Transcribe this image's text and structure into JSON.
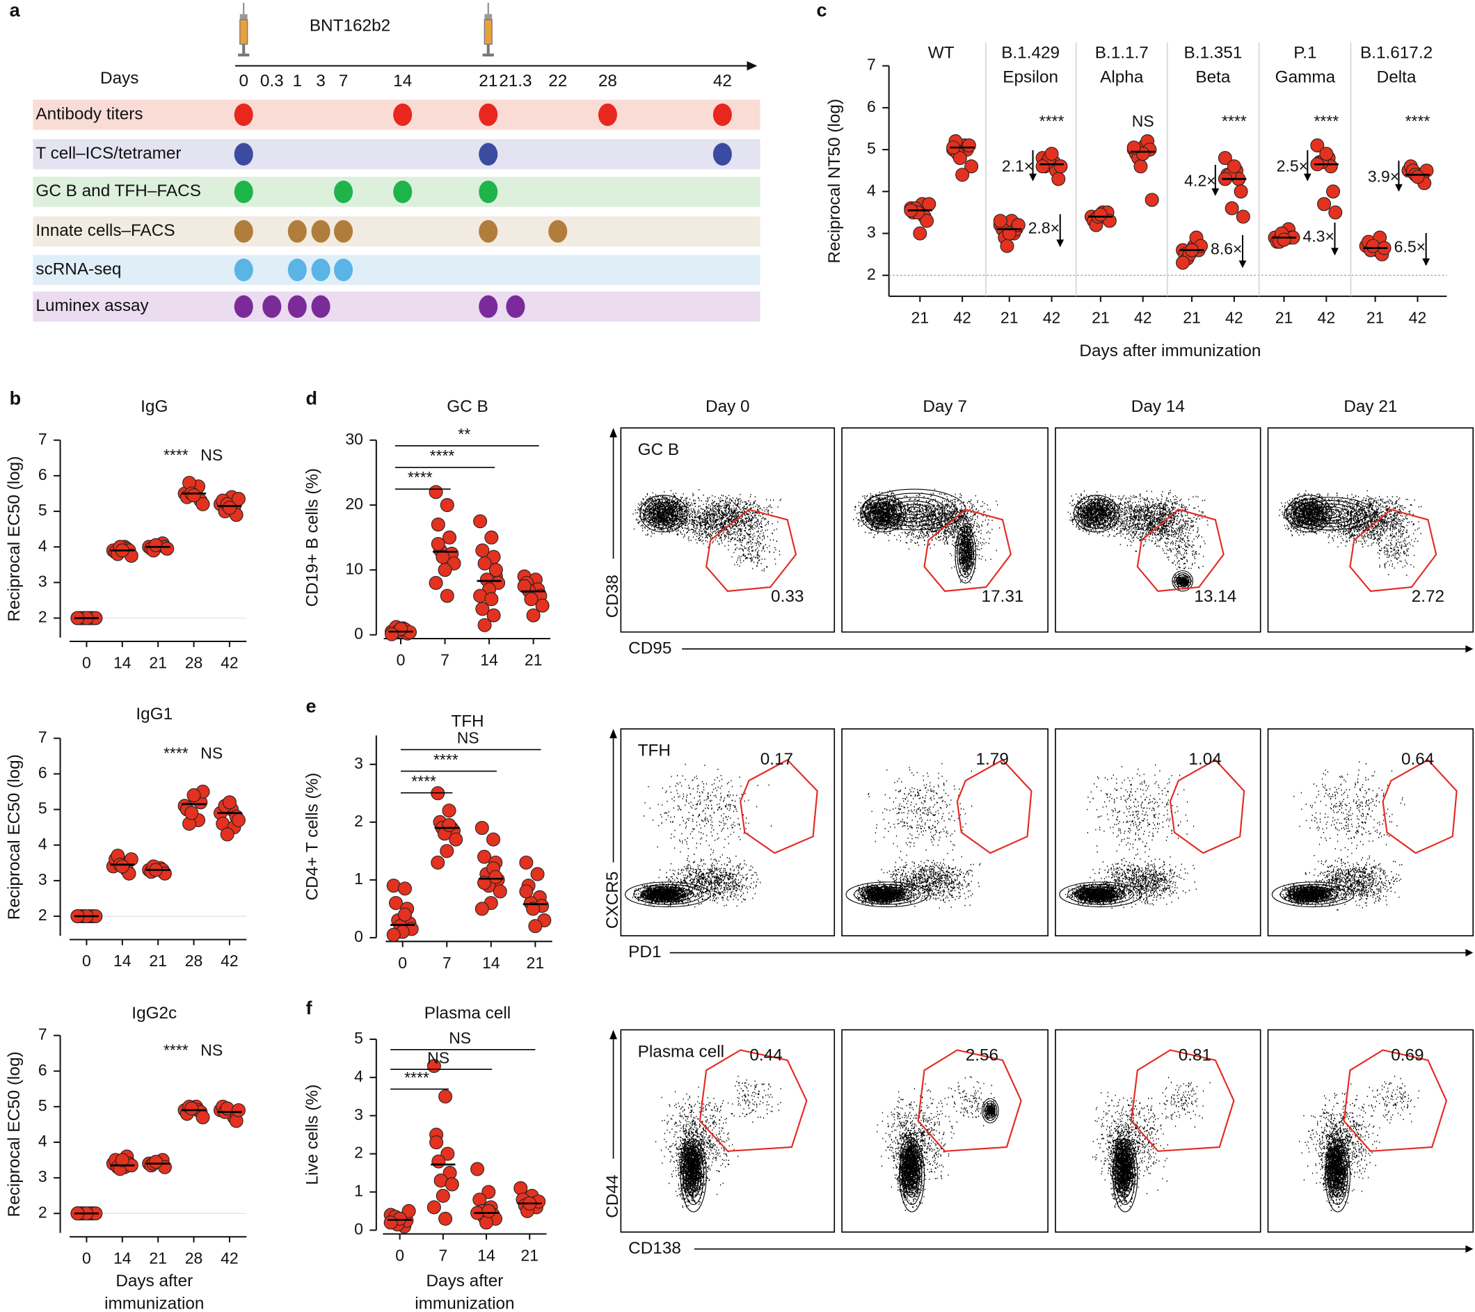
{
  "panels": [
    "a",
    "b",
    "c",
    "d",
    "e",
    "f"
  ],
  "timeline": {
    "vaccine": "BNT162b2",
    "days_label": "Days",
    "days": [
      0,
      0.3,
      1,
      3,
      7,
      14,
      21,
      21.3,
      22,
      28,
      42
    ],
    "rows": [
      {
        "label": "Antibody titers",
        "color": "#e8281e",
        "background": "#fadcd7",
        "days": [
          0,
          14,
          21,
          28,
          42
        ]
      },
      {
        "label": "T cell–ICS/tetramer",
        "color": "#3b4ba0",
        "background": "#e3e3f1",
        "days": [
          0,
          21,
          42
        ]
      },
      {
        "label": "GC B and TFH–FACS",
        "color": "#1fb44a",
        "background": "#dcf0dc",
        "days": [
          0,
          7,
          14,
          21
        ]
      },
      {
        "label": "Innate cells–FACS",
        "color": "#b07d3b",
        "background": "#f2ebe2",
        "days": [
          1,
          3,
          7,
          21,
          22,
          0
        ]
      },
      {
        "label": "scRNA-seq",
        "color": "#5ab4e5",
        "background": "#e0eef8",
        "days": [
          0,
          1,
          3,
          7
        ]
      },
      {
        "label": "Luminex assay",
        "color": "#7b2a9a",
        "background": "#ebdcf0",
        "days": [
          0,
          0.3,
          1,
          3,
          21,
          21.3
        ]
      }
    ]
  },
  "chart_data": [
    {
      "type": "dot",
      "ylabel": "Reciprocal NT50 (log)",
      "xlabel": "Days after immunization",
      "ylim": [
        1.5,
        7
      ],
      "yticks": [
        2,
        3,
        4,
        5,
        6,
        7
      ],
      "reference_line": 2,
      "color": "#e3321f",
      "groups": [
        {
          "name": [
            "WT"
          ],
          "categories": [
            "21",
            "42"
          ],
          "values": [
            [
              3.6,
              3.7,
              3.5,
              3.4,
              3.6,
              3.3,
              3.5,
              3.7,
              3.0,
              3.55
            ],
            [
              5.0,
              5.1,
              5.2,
              5.0,
              4.9,
              5.1,
              4.8,
              4.6,
              4.4,
              5.05
            ]
          ],
          "medians": [
            3.55,
            5.05
          ]
        },
        {
          "name": [
            "B.1.429",
            "Epsilon"
          ],
          "categories": [
            "21",
            "42"
          ],
          "values": [
            [
              3.2,
              3.3,
              3.1,
              3.0,
              2.9,
              3.1,
              2.7,
              3.2,
              3.0,
              3.3
            ],
            [
              4.8,
              4.7,
              4.6,
              4.5,
              4.7,
              4.3,
              4.8,
              4.6,
              4.9,
              4.6
            ]
          ],
          "medians": [
            3.1,
            4.65
          ],
          "significance": "****",
          "fold_changes": [
            "2.1×",
            "2.8×"
          ]
        },
        {
          "name": [
            "B.1.1.7",
            "Alpha"
          ],
          "categories": [
            "21",
            "42"
          ],
          "values": [
            [
              3.4,
              3.5,
              3.3,
              3.4,
              3.2,
              3.5,
              3.4,
              3.3,
              3.45
            ],
            [
              5.0,
              5.1,
              4.9,
              5.2,
              4.8,
              5.0,
              4.6,
              3.8,
              4.9,
              5.05
            ]
          ],
          "medians": [
            3.4,
            4.95
          ],
          "significance": "NS"
        },
        {
          "name": [
            "B.1.351",
            "Beta"
          ],
          "categories": [
            "21",
            "42"
          ],
          "values": [
            [
              2.6,
              2.7,
              2.5,
              2.9,
              2.4,
              2.6,
              2.5,
              2.7,
              2.6,
              2.3
            ],
            [
              4.8,
              4.5,
              4.4,
              4.3,
              4.4,
              4.0,
              3.6,
              3.4,
              4.6,
              4.3
            ]
          ],
          "medians": [
            2.6,
            4.3
          ],
          "significance": "****",
          "fold_changes": [
            "4.2×",
            "8.6×"
          ]
        },
        {
          "name": [
            "P.1",
            "Gamma"
          ],
          "categories": [
            "21",
            "42"
          ],
          "values": [
            [
              2.9,
              3.0,
              2.8,
              3.1,
              2.8,
              2.9,
              3.0,
              2.9,
              2.85
            ],
            [
              5.1,
              4.8,
              4.7,
              4.6,
              4.7,
              4.0,
              3.7,
              3.5,
              4.9,
              4.65
            ]
          ],
          "medians": [
            2.9,
            4.65
          ],
          "significance": "****",
          "fold_changes": [
            "2.5×",
            "4.3×"
          ]
        },
        {
          "name": [
            "B.1.617.2",
            "Delta"
          ],
          "categories": [
            "21",
            "42"
          ],
          "values": [
            [
              2.7,
              2.6,
              2.8,
              2.9,
              2.6,
              2.5,
              2.7,
              2.65
            ],
            [
              4.5,
              4.4,
              4.6,
              4.3,
              4.5,
              4.2,
              4.4,
              4.5,
              4.35
            ]
          ],
          "medians": [
            2.65,
            4.4
          ],
          "significance": "****",
          "fold_changes": [
            "3.9×",
            "6.5×"
          ]
        }
      ]
    },
    {
      "type": "dot",
      "title": "IgG",
      "ylabel": "Reciprocal EC50 (log)",
      "categories": [
        "0",
        "14",
        "21",
        "28",
        "42"
      ],
      "values": [
        [
          2,
          2,
          2,
          2,
          2,
          2,
          2,
          2,
          2,
          2
        ],
        [
          3.9,
          4.0,
          3.85,
          3.95,
          3.8,
          3.9,
          4.0,
          3.75,
          3.9
        ],
        [
          4.0,
          4.05,
          3.95,
          4.1,
          3.9,
          4.0,
          4.05,
          3.95
        ],
        [
          5.5,
          5.6,
          5.4,
          5.7,
          5.8,
          5.3,
          5.5,
          5.2,
          5.45
        ],
        [
          5.2,
          5.4,
          5.3,
          5.1,
          5.0,
          4.9,
          5.2,
          5.35,
          5.1
        ]
      ],
      "medians": [
        2,
        3.9,
        4.0,
        5.5,
        5.15
      ],
      "ylim": [
        1.45,
        7
      ],
      "yticks": [
        2,
        3,
        4,
        5,
        6,
        7
      ],
      "reference_line": 2,
      "significance": [
        "****",
        "NS"
      ],
      "color": "#e3321f"
    },
    {
      "type": "dot",
      "title": "IgG1",
      "ylabel": "Reciprocal EC50 (log)",
      "categories": [
        "0",
        "14",
        "21",
        "28",
        "42"
      ],
      "values": [
        [
          2,
          2,
          2,
          2,
          2,
          2,
          2,
          2,
          2,
          2
        ],
        [
          3.4,
          3.5,
          3.6,
          3.3,
          3.7,
          3.2,
          3.45,
          3.6,
          3.4
        ],
        [
          3.3,
          3.35,
          3.25,
          3.3,
          3.4,
          3.2,
          3.3
        ],
        [
          5.1,
          5.3,
          5.0,
          4.7,
          4.6,
          5.2,
          4.9,
          5.5,
          5.4
        ],
        [
          4.9,
          5.0,
          4.6,
          4.5,
          5.1,
          4.8,
          4.3,
          4.7,
          5.2
        ]
      ],
      "medians": [
        2,
        3.45,
        3.3,
        5.15,
        4.9
      ],
      "ylim": [
        1.45,
        7
      ],
      "yticks": [
        2,
        3,
        4,
        5,
        6,
        7
      ],
      "reference_line": 2,
      "significance": [
        "****",
        "NS"
      ],
      "color": "#e3321f"
    },
    {
      "type": "dot",
      "title": "IgG2c",
      "ylabel": "Reciprocal EC50 (log)",
      "xlabel": [
        "Days after",
        "immunization"
      ],
      "categories": [
        "0",
        "14",
        "21",
        "28",
        "42"
      ],
      "values": [
        [
          2,
          2,
          2,
          2,
          2,
          2,
          2,
          2,
          2,
          2
        ],
        [
          3.4,
          3.3,
          3.5,
          3.6,
          3.3,
          3.4,
          3.25,
          3.35,
          3.5
        ],
        [
          3.4,
          3.45,
          3.35,
          3.5,
          3.4,
          3.3,
          3.45
        ],
        [
          4.9,
          5.0,
          4.8,
          4.9,
          5.0,
          4.85,
          4.95,
          4.7
        ],
        [
          4.9,
          4.8,
          5.0,
          4.7,
          4.85,
          4.6,
          4.95,
          4.9
        ]
      ],
      "medians": [
        2,
        3.35,
        3.4,
        4.9,
        4.85
      ],
      "ylim": [
        1.45,
        7
      ],
      "yticks": [
        2,
        3,
        4,
        5,
        6,
        7
      ],
      "reference_line": 2,
      "significance": [
        "****",
        "NS"
      ],
      "color": "#e3321f"
    },
    {
      "type": "dot",
      "title": "GC B",
      "ylabel": "CD19+ B cells (%)",
      "categories": [
        "0",
        "7",
        "14",
        "21"
      ],
      "values": [
        [
          0.5,
          1,
          0.3,
          0.8,
          1.2,
          0.2,
          0.6,
          0.4,
          0.9,
          0.1
        ],
        [
          22,
          20,
          17,
          15,
          13,
          12.5,
          12,
          11,
          10,
          8,
          6,
          14
        ],
        [
          17.5,
          15,
          13,
          12,
          11,
          9,
          8.5,
          8,
          7,
          6,
          5.5,
          4,
          3,
          1.5,
          10
        ],
        [
          9,
          8.5,
          8,
          7,
          6.8,
          6,
          5.5,
          4.5,
          3,
          7.5
        ]
      ],
      "medians": [
        0.5,
        12.8,
        8.3,
        6.7
      ],
      "ylim": [
        0,
        30
      ],
      "yticks": [
        0,
        10,
        20,
        30
      ],
      "significance": [
        "****",
        "****",
        "**"
      ],
      "color": "#e3321f"
    },
    {
      "type": "dot",
      "title": "TFH",
      "ylabel": "CD4+ T cells (%)",
      "categories": [
        "0",
        "7",
        "14",
        "21"
      ],
      "values": [
        [
          0.9,
          0.85,
          0.6,
          0.5,
          0.3,
          0.25,
          0.2,
          0.15,
          0.1,
          0.05,
          0.4
        ],
        [
          2.5,
          2.2,
          2.0,
          1.9,
          1.9,
          1.85,
          1.8,
          1.7,
          1.5,
          1.3,
          1.95
        ],
        [
          1.9,
          1.7,
          1.4,
          1.3,
          1.1,
          1.0,
          0.9,
          0.8,
          0.6,
          0.5,
          1.2,
          0.95,
          1.05
        ],
        [
          1.3,
          1.1,
          0.9,
          0.7,
          0.6,
          0.55,
          0.5,
          0.3,
          0.2,
          0.8
        ]
      ],
      "medians": [
        0.22,
        1.9,
        1.02,
        0.58
      ],
      "ylim": [
        0,
        3.5
      ],
      "yticks": [
        0,
        1,
        2,
        3
      ],
      "significance": [
        "****",
        "****",
        "NS"
      ],
      "color": "#e3321f"
    },
    {
      "type": "dot",
      "title": "Plasma cell",
      "ylabel": "Live cells (%)",
      "xlabel": [
        "Days after",
        "immunization"
      ],
      "categories": [
        "0",
        "7",
        "14",
        "21"
      ],
      "values": [
        [
          0.4,
          0.3,
          0.2,
          0.1,
          0.35,
          0.25,
          0.15,
          0.5,
          0.3,
          0.2
        ],
        [
          4.3,
          3.5,
          2.5,
          2.0,
          1.8,
          1.5,
          1.3,
          1.2,
          0.9,
          0.6,
          0.3,
          2.3
        ],
        [
          1.6,
          1.0,
          0.8,
          0.6,
          0.5,
          0.4,
          0.35,
          0.3,
          0.2,
          0.45,
          0.5
        ],
        [
          1.1,
          0.9,
          0.8,
          0.7,
          0.65,
          0.6,
          0.5,
          0.75,
          0.7
        ]
      ],
      "medians": [
        0.27,
        1.72,
        0.45,
        0.7
      ],
      "ylim": [
        0,
        5
      ],
      "yticks": [
        0,
        1,
        2,
        3,
        4,
        5
      ],
      "significance": [
        "****",
        "NS",
        "NS"
      ],
      "color": "#e3321f"
    }
  ],
  "flow": {
    "columns": [
      "Day 0",
      "Day 7",
      "Day 14",
      "Day 21"
    ],
    "gate_color": "#e32b22",
    "rows": [
      {
        "label": "GC B",
        "y_axis": "CD38",
        "x_axis": "CD95",
        "percentages": [
          0.33,
          17.31,
          13.14,
          2.72
        ]
      },
      {
        "label": "TFH",
        "y_axis": "CXCR5",
        "x_axis": "PD1",
        "percentages": [
          0.17,
          1.79,
          1.04,
          0.64
        ]
      },
      {
        "label": "Plasma cell",
        "y_axis": "CD44",
        "x_axis": "CD138",
        "percentages": [
          0.44,
          2.56,
          0.81,
          0.69
        ]
      }
    ]
  }
}
